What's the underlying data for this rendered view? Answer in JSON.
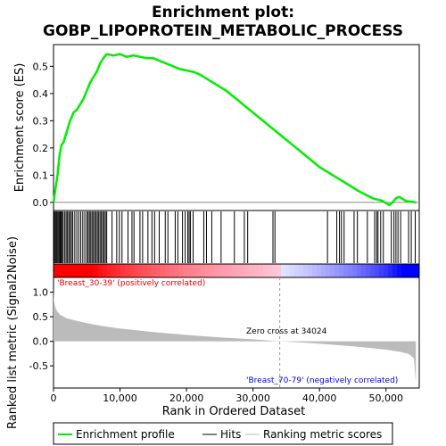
{
  "chart_data": {
    "type": "line",
    "title_line1": "Enrichment plot:",
    "title_line2": "GOBP_LIPOPROTEIN_METABOLIC_PROCESS",
    "es_panel": {
      "ylabel": "Enrichment score (ES)",
      "xlim": [
        0,
        55000
      ],
      "ylim": [
        -0.03,
        0.58
      ],
      "yticks": [
        0.0,
        0.1,
        0.2,
        0.3,
        0.4,
        0.5
      ],
      "ytick_labels": [
        "0.0",
        "0.1",
        "0.2",
        "0.3",
        "0.4",
        "0.5"
      ],
      "series_name": "Enrichment profile",
      "color": "#00ee00",
      "x": [
        0,
        300,
        600,
        900,
        1200,
        1500,
        2000,
        2500,
        3000,
        3500,
        4000,
        4500,
        5000,
        5500,
        6000,
        6500,
        7000,
        7500,
        8000,
        9000,
        10000,
        11000,
        12000,
        13000,
        14000,
        15000,
        16000,
        17000,
        18000,
        19000,
        20000,
        21000,
        22000,
        23000,
        24000,
        26000,
        28000,
        30000,
        32000,
        34000,
        36000,
        38000,
        40000,
        42000,
        44000,
        46000,
        48000,
        49500,
        50500,
        51000,
        51500,
        52000,
        53000,
        53500,
        54000,
        54500
      ],
      "y": [
        0.0,
        0.05,
        0.1,
        0.17,
        0.21,
        0.22,
        0.26,
        0.3,
        0.33,
        0.34,
        0.36,
        0.38,
        0.41,
        0.44,
        0.46,
        0.48,
        0.51,
        0.53,
        0.545,
        0.54,
        0.545,
        0.535,
        0.54,
        0.535,
        0.53,
        0.53,
        0.52,
        0.51,
        0.5,
        0.49,
        0.485,
        0.48,
        0.47,
        0.455,
        0.44,
        0.41,
        0.37,
        0.33,
        0.29,
        0.25,
        0.21,
        0.17,
        0.13,
        0.1,
        0.07,
        0.04,
        0.015,
        0.005,
        -0.01,
        0.0,
        0.015,
        0.02,
        0.005,
        0.003,
        0.002,
        0.0
      ]
    },
    "hits": [
      100,
      250,
      400,
      550,
      700,
      850,
      1000,
      1150,
      1300,
      1450,
      1700,
      1900,
      2100,
      2300,
      2500,
      2700,
      2900,
      3200,
      3500,
      3800,
      4100,
      4400,
      4700,
      5000,
      5200,
      5400,
      5600,
      5800,
      6000,
      6200,
      6400,
      6600,
      6800,
      7000,
      7200,
      7400,
      7600,
      7800,
      8000,
      8800,
      9500,
      9900,
      10300,
      11200,
      11800,
      12100,
      13000,
      13400,
      14200,
      14800,
      15200,
      15900,
      16800,
      17200,
      18300,
      18700,
      19400,
      19800,
      20200,
      20400,
      20600,
      21000,
      22600,
      23000,
      23800,
      25200,
      27200,
      28700,
      29200,
      33000,
      33300,
      41200,
      42600,
      43000,
      43300,
      43700,
      45200,
      45700,
      47200,
      48300,
      48600,
      48800,
      49200,
      49600,
      50800,
      51200,
      51500,
      51800,
      52200,
      53400,
      53800,
      54400
    ],
    "heatmap": {
      "label_pos": "'Breast_30-39' (positively correlated)",
      "label_neg": "'Breast_70-79' (negatively correlated)",
      "pos_color": "#ff0000",
      "neg_color": "#0000ff"
    },
    "metric_panel": {
      "ylabel": "Ranked list metric (Signal2Noise)",
      "xlabel": "Rank in Ordered Dataset",
      "ylim": [
        -0.95,
        1.3
      ],
      "yticks": [
        -0.5,
        0.0,
        0.5,
        1.0
      ],
      "ytick_labels": [
        "-0.5",
        "0.0",
        "0.5",
        "1.0"
      ],
      "xticks": [
        0,
        10000,
        20000,
        30000,
        40000,
        50000
      ],
      "xtick_labels": [
        "0",
        "10,000",
        "20,000",
        "30,000",
        "40,000",
        "50,000"
      ],
      "zero_cross_label": "Zero cross at 34024",
      "zero_cross": 34024,
      "x": [
        0,
        100,
        300,
        600,
        1000,
        2000,
        3000,
        5000,
        7500,
        10000,
        15000,
        20000,
        25000,
        30000,
        34024,
        38000,
        42000,
        45000,
        48000,
        50000,
        52000,
        53500,
        54200,
        54500
      ],
      "y": [
        1.05,
        0.8,
        0.68,
        0.6,
        0.54,
        0.47,
        0.43,
        0.37,
        0.31,
        0.26,
        0.19,
        0.13,
        0.08,
        0.04,
        0.0,
        -0.03,
        -0.07,
        -0.1,
        -0.14,
        -0.17,
        -0.21,
        -0.26,
        -0.35,
        -0.85
      ]
    },
    "legend": {
      "entries": [
        "Enrichment profile",
        "Hits",
        "Ranking metric scores"
      ],
      "colors": [
        "#00ee00",
        "#000000",
        "#bbbbbb"
      ]
    }
  }
}
